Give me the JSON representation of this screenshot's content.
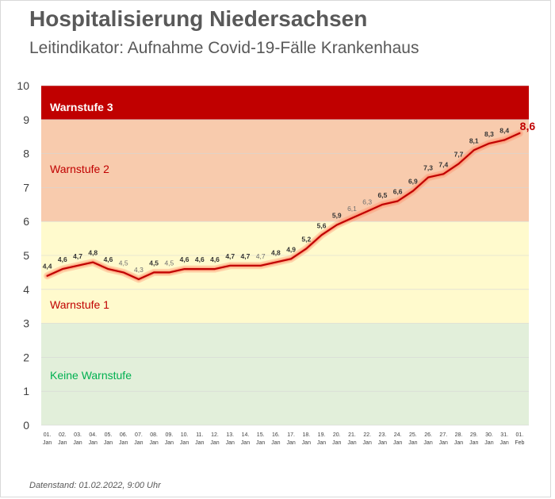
{
  "header": {
    "title": "Hospitalisierung Niedersachsen",
    "subtitle": "Leitindikator: Aufnahme Covid-19-Fälle Krankenhaus"
  },
  "footer": {
    "source": "Datenstand: 01.02.2022, 9:00 Uhr"
  },
  "chart_data": {
    "type": "line",
    "title": "Hospitalisierung Niedersachsen",
    "subtitle": "Leitindikator: Aufnahme Covid-19-Fälle Krankenhaus",
    "xlabel": "",
    "ylabel": "",
    "ylim": [
      0,
      10
    ],
    "yticks": [
      "0",
      "1",
      "2",
      "3",
      "4",
      "5",
      "6",
      "7",
      "8",
      "9",
      "10"
    ],
    "x_day": [
      "01.",
      "02.",
      "03.",
      "04.",
      "05.",
      "06.",
      "07.",
      "08.",
      "09.",
      "10.",
      "11.",
      "12.",
      "13.",
      "14.",
      "15.",
      "16.",
      "17.",
      "18.",
      "19.",
      "20.",
      "21.",
      "22.",
      "23.",
      "24.",
      "25.",
      "26.",
      "27.",
      "28.",
      "29.",
      "30.",
      "31.",
      "01."
    ],
    "x_month": [
      "Jan",
      "Jan",
      "Jan",
      "Jan",
      "Jan",
      "Jan",
      "Jan",
      "Jan",
      "Jan",
      "Jan",
      "Jan",
      "Jan",
      "Jan",
      "Jan",
      "Jan",
      "Jan",
      "Jan",
      "Jan",
      "Jan",
      "Jan",
      "Jan",
      "Jan",
      "Jan",
      "Jan",
      "Jan",
      "Jan",
      "Jan",
      "Jan",
      "Jan",
      "Jan",
      "Jan",
      "Feb"
    ],
    "values": [
      4.4,
      4.6,
      4.7,
      4.8,
      4.6,
      4.5,
      4.3,
      4.5,
      4.5,
      4.6,
      4.6,
      4.6,
      4.7,
      4.7,
      4.7,
      4.8,
      4.9,
      5.2,
      5.6,
      5.9,
      6.1,
      6.3,
      6.5,
      6.6,
      6.9,
      7.3,
      7.4,
      7.7,
      8.1,
      8.3,
      8.4,
      8.6
    ],
    "value_labels": [
      "4,4",
      "4,6",
      "4,7",
      "4,8",
      "4,6",
      "4,5",
      "4,3",
      "4,5",
      "4,5",
      "4,6",
      "4,6",
      "4,6",
      "4,7",
      "4,7",
      "4,7",
      "4,8",
      "4,9",
      "5,2",
      "5,6",
      "5,9",
      "6,1",
      "6,3",
      "6,5",
      "6,6",
      "6,9",
      "7,3",
      "7,4",
      "7,7",
      "8,1",
      "8,3",
      "8,4",
      "8,6"
    ],
    "bands": [
      {
        "label": "Keine Warnstufe",
        "from": 0,
        "to": 3,
        "fill": "#e2efda",
        "text_color": "#00b050"
      },
      {
        "label": "Warnstufe 1",
        "from": 3,
        "to": 6,
        "fill": "#fffacd",
        "text_color": "#c00000"
      },
      {
        "label": "Warnstufe 2",
        "from": 6,
        "to": 9,
        "fill": "#f8cbad",
        "text_color": "#c00000"
      },
      {
        "label": "Warnstufe 3",
        "from": 9,
        "to": 10,
        "fill": "#c00000",
        "text_color": "#ffffff"
      }
    ],
    "line_color": "#c00000",
    "glow_color": "#ff8a65"
  }
}
